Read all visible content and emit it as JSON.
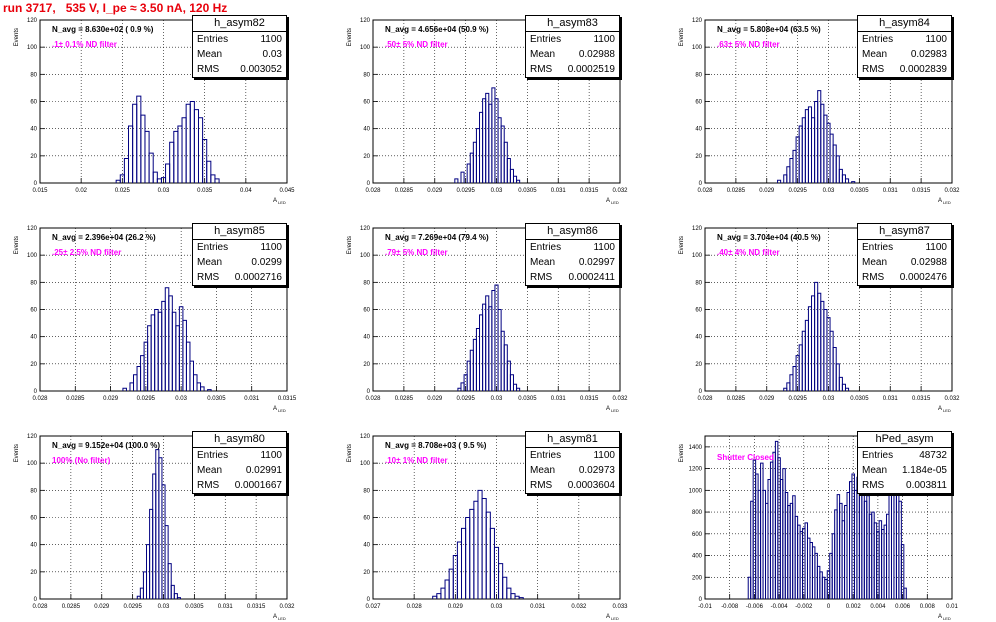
{
  "title": "run 3717,   535 V, I_pe ≈ 3.50 nA, 120 Hz",
  "colors": {
    "title": "#e8000b",
    "hist_line": "#000080",
    "filter_label": "#ff00ff"
  },
  "chart_data": [
    {
      "type": "bar",
      "name": "h_asym82",
      "stats": {
        "entries": "1100",
        "mean": "0.03",
        "rms": "0.003052"
      },
      "labels": {
        "n_avg": "N_avg = 8.630e+02 ( 0.9 %)",
        "filter": ".1± 0.1% ND filter",
        "ylabel": "Events",
        "xlabel": "A",
        "xlabel_sub": "LED"
      },
      "xlim": [
        0.015,
        0.045
      ],
      "ylim": [
        0,
        120
      ],
      "xticks": [
        "0.015",
        "0.02",
        "0.025",
        "0.03",
        "0.035",
        "0.04",
        "0.045"
      ],
      "yticks": [
        "0",
        "20",
        "40",
        "60",
        "80",
        "100",
        "120"
      ],
      "grid": true,
      "bins": [
        [
          0.0245,
          2
        ],
        [
          0.025,
          6
        ],
        [
          0.0255,
          18
        ],
        [
          0.026,
          42
        ],
        [
          0.0265,
          58
        ],
        [
          0.027,
          64
        ],
        [
          0.0275,
          50
        ],
        [
          0.028,
          38
        ],
        [
          0.0285,
          22
        ],
        [
          0.029,
          8
        ],
        [
          0.0295,
          3
        ],
        [
          0.03,
          4
        ],
        [
          0.0305,
          14
        ],
        [
          0.031,
          30
        ],
        [
          0.0315,
          38
        ],
        [
          0.032,
          42
        ],
        [
          0.0325,
          48
        ],
        [
          0.033,
          58
        ],
        [
          0.0335,
          60
        ],
        [
          0.034,
          54
        ],
        [
          0.0345,
          48
        ],
        [
          0.035,
          32
        ],
        [
          0.0355,
          16
        ],
        [
          0.036,
          6
        ],
        [
          0.0365,
          3
        ]
      ]
    },
    {
      "type": "bar",
      "name": "h_asym83",
      "stats": {
        "entries": "1100",
        "mean": "0.02988",
        "rms": "0.0002519"
      },
      "labels": {
        "n_avg": "N_avg = 4.656e+04 (50.9 %)",
        "filter": ".50± 5% ND filter",
        "ylabel": "Events",
        "xlabel": "A",
        "xlabel_sub": "LED"
      },
      "xlim": [
        0.028,
        0.032
      ],
      "ylim": [
        0,
        120
      ],
      "xticks": [
        "0.028",
        "0.0285",
        "0.029",
        "0.0295",
        "0.03",
        "0.0305",
        "0.031",
        "0.0315",
        "0.032"
      ],
      "yticks": [
        "0",
        "20",
        "40",
        "60",
        "80",
        "100",
        "120"
      ],
      "grid": true,
      "bins": [
        [
          0.02935,
          3
        ],
        [
          0.02945,
          8
        ],
        [
          0.02955,
          14
        ],
        [
          0.0296,
          22
        ],
        [
          0.02965,
          30
        ],
        [
          0.0297,
          40
        ],
        [
          0.02975,
          52
        ],
        [
          0.0298,
          62
        ],
        [
          0.02985,
          66
        ],
        [
          0.0299,
          58
        ],
        [
          0.02995,
          70
        ],
        [
          0.03,
          62
        ],
        [
          0.03005,
          48
        ],
        [
          0.0301,
          42
        ],
        [
          0.03015,
          30
        ],
        [
          0.0302,
          18
        ],
        [
          0.03025,
          10
        ],
        [
          0.0303,
          5
        ],
        [
          0.03035,
          2
        ]
      ]
    },
    {
      "type": "bar",
      "name": "h_asym84",
      "stats": {
        "entries": "1100",
        "mean": "0.02983",
        "rms": "0.0002839"
      },
      "labels": {
        "n_avg": "N_avg = 5.808e+04 (63.5 %)",
        "filter": ".63± 5% ND filter",
        "ylabel": "Events",
        "xlabel": "A",
        "xlabel_sub": "LED"
      },
      "xlim": [
        0.028,
        0.032
      ],
      "ylim": [
        0,
        120
      ],
      "xticks": [
        "0.028",
        "0.0285",
        "0.029",
        "0.0295",
        "0.03",
        "0.0305",
        "0.031",
        "0.0315",
        "0.032"
      ],
      "yticks": [
        "0",
        "20",
        "40",
        "60",
        "80",
        "100",
        "120"
      ],
      "grid": true,
      "bins": [
        [
          0.0292,
          2
        ],
        [
          0.0293,
          6
        ],
        [
          0.02935,
          12
        ],
        [
          0.0294,
          18
        ],
        [
          0.02945,
          24
        ],
        [
          0.0295,
          34
        ],
        [
          0.02955,
          42
        ],
        [
          0.0296,
          48
        ],
        [
          0.02965,
          54
        ],
        [
          0.0297,
          56
        ],
        [
          0.02975,
          48
        ],
        [
          0.0298,
          60
        ],
        [
          0.02985,
          68
        ],
        [
          0.0299,
          58
        ],
        [
          0.02995,
          50
        ],
        [
          0.03,
          44
        ],
        [
          0.03005,
          36
        ],
        [
          0.0301,
          28
        ],
        [
          0.03015,
          20
        ],
        [
          0.0302,
          10
        ],
        [
          0.03025,
          6
        ],
        [
          0.0303,
          3
        ],
        [
          0.0304,
          1
        ]
      ]
    },
    {
      "type": "bar",
      "name": "h_asym85",
      "stats": {
        "entries": "1100",
        "mean": "0.0299",
        "rms": "0.0002716"
      },
      "labels": {
        "n_avg": "N_avg = 2.396e+04 (26.2 %)",
        "filter": ".25± 2.5% ND filter",
        "ylabel": "Events",
        "xlabel": "A",
        "xlabel_sub": "LED"
      },
      "xlim": [
        0.028,
        0.0315
      ],
      "ylim": [
        0,
        120
      ],
      "xticks": [
        "0.028",
        "0.0285",
        "0.029",
        "0.0295",
        "0.03",
        "0.0305",
        "0.031",
        "0.0315"
      ],
      "yticks": [
        "0",
        "20",
        "40",
        "60",
        "80",
        "100",
        "120"
      ],
      "grid": true,
      "bins": [
        [
          0.0292,
          2
        ],
        [
          0.0293,
          6
        ],
        [
          0.02935,
          12
        ],
        [
          0.0294,
          18
        ],
        [
          0.02945,
          26
        ],
        [
          0.0295,
          36
        ],
        [
          0.02955,
          48
        ],
        [
          0.0296,
          56
        ],
        [
          0.02965,
          60
        ],
        [
          0.0297,
          58
        ],
        [
          0.02975,
          66
        ],
        [
          0.0298,
          76
        ],
        [
          0.02985,
          70
        ],
        [
          0.0299,
          58
        ],
        [
          0.02995,
          48
        ],
        [
          0.03,
          62
        ],
        [
          0.03005,
          52
        ],
        [
          0.0301,
          36
        ],
        [
          0.03015,
          22
        ],
        [
          0.0302,
          12
        ],
        [
          0.03025,
          6
        ],
        [
          0.0303,
          3
        ],
        [
          0.0304,
          1
        ]
      ]
    },
    {
      "type": "bar",
      "name": "h_asym86",
      "stats": {
        "entries": "1100",
        "mean": "0.02997",
        "rms": "0.0002411"
      },
      "labels": {
        "n_avg": "N_avg = 7.269e+04 (79.4 %)",
        "filter": ".79± 5% ND filter",
        "ylabel": "Events",
        "xlabel": "A",
        "xlabel_sub": "LED"
      },
      "xlim": [
        0.028,
        0.032
      ],
      "ylim": [
        0,
        120
      ],
      "xticks": [
        "0.028",
        "0.0285",
        "0.029",
        "0.0295",
        "0.03",
        "0.0305",
        "0.031",
        "0.0315",
        "0.032"
      ],
      "yticks": [
        "0",
        "20",
        "40",
        "60",
        "80",
        "100",
        "120"
      ],
      "grid": true,
      "bins": [
        [
          0.0294,
          2
        ],
        [
          0.02945,
          6
        ],
        [
          0.0295,
          12
        ],
        [
          0.02955,
          22
        ],
        [
          0.0296,
          30
        ],
        [
          0.02965,
          38
        ],
        [
          0.0297,
          46
        ],
        [
          0.02975,
          56
        ],
        [
          0.0298,
          64
        ],
        [
          0.02985,
          70
        ],
        [
          0.0299,
          62
        ],
        [
          0.02995,
          74
        ],
        [
          0.03,
          78
        ],
        [
          0.03005,
          60
        ],
        [
          0.0301,
          44
        ],
        [
          0.03015,
          34
        ],
        [
          0.0302,
          22
        ],
        [
          0.03025,
          12
        ],
        [
          0.0303,
          5
        ],
        [
          0.03035,
          2
        ]
      ]
    },
    {
      "type": "bar",
      "name": "h_asym87",
      "stats": {
        "entries": "1100",
        "mean": "0.02988",
        "rms": "0.0002476"
      },
      "labels": {
        "n_avg": "N_avg = 3.704e+04 (40.5 %)",
        "filter": ".40± 4% ND filter",
        "ylabel": "Events",
        "xlabel": "A",
        "xlabel_sub": "LED"
      },
      "xlim": [
        0.028,
        0.032
      ],
      "ylim": [
        0,
        120
      ],
      "xticks": [
        "0.028",
        "0.0285",
        "0.029",
        "0.0295",
        "0.03",
        "0.0305",
        "0.031",
        "0.0315",
        "0.032"
      ],
      "yticks": [
        "0",
        "20",
        "40",
        "60",
        "80",
        "100",
        "120"
      ],
      "grid": true,
      "bins": [
        [
          0.0293,
          2
        ],
        [
          0.02935,
          6
        ],
        [
          0.0294,
          12
        ],
        [
          0.02945,
          18
        ],
        [
          0.0295,
          26
        ],
        [
          0.02955,
          34
        ],
        [
          0.0296,
          44
        ],
        [
          0.02965,
          52
        ],
        [
          0.0297,
          62
        ],
        [
          0.02975,
          70
        ],
        [
          0.0298,
          80
        ],
        [
          0.02985,
          72
        ],
        [
          0.0299,
          66
        ],
        [
          0.02995,
          60
        ],
        [
          0.03,
          54
        ],
        [
          0.03005,
          44
        ],
        [
          0.0301,
          32
        ],
        [
          0.03015,
          20
        ],
        [
          0.0302,
          10
        ],
        [
          0.03025,
          5
        ],
        [
          0.0303,
          2
        ]
      ]
    },
    {
      "type": "bar",
      "name": "h_asym80",
      "stats": {
        "entries": "1100",
        "mean": "0.02991",
        "rms": "0.0001667"
      },
      "labels": {
        "n_avg": "N_avg = 9.152e+04 (100.0 %)",
        "filter": "100% (No filter)",
        "ylabel": "Events",
        "xlabel": "A",
        "xlabel_sub": "LED"
      },
      "xlim": [
        0.028,
        0.032
      ],
      "ylim": [
        0,
        120
      ],
      "xticks": [
        "0.028",
        "0.0285",
        "0.029",
        "0.0295",
        "0.03",
        "0.0305",
        "0.031",
        "0.0315",
        "0.032"
      ],
      "yticks": [
        "0",
        "20",
        "40",
        "60",
        "80",
        "100",
        "120"
      ],
      "grid": true,
      "bins": [
        [
          0.0296,
          2
        ],
        [
          0.02965,
          8
        ],
        [
          0.0297,
          20
        ],
        [
          0.02975,
          40
        ],
        [
          0.0298,
          66
        ],
        [
          0.02985,
          92
        ],
        [
          0.0299,
          110
        ],
        [
          0.02995,
          104
        ],
        [
          0.03,
          84
        ],
        [
          0.03005,
          54
        ],
        [
          0.0301,
          26
        ],
        [
          0.03015,
          10
        ],
        [
          0.0302,
          4
        ],
        [
          0.03025,
          1
        ]
      ]
    },
    {
      "type": "bar",
      "name": "h_asym81",
      "stats": {
        "entries": "1100",
        "mean": "0.02973",
        "rms": "0.0003604"
      },
      "labels": {
        "n_avg": "N_avg = 8.708e+03 ( 9.5 %)",
        "filter": ".10± 1% ND filter",
        "ylabel": "Events",
        "xlabel": "A",
        "xlabel_sub": "LED"
      },
      "xlim": [
        0.027,
        0.033
      ],
      "ylim": [
        0,
        120
      ],
      "xticks": [
        "0.027",
        "0.028",
        "0.029",
        "0.03",
        "0.031",
        "0.032",
        "0.033"
      ],
      "yticks": [
        "0",
        "20",
        "40",
        "60",
        "80",
        "100",
        "120"
      ],
      "grid": true,
      "bins": [
        [
          0.0285,
          2
        ],
        [
          0.0286,
          4
        ],
        [
          0.0287,
          8
        ],
        [
          0.0288,
          14
        ],
        [
          0.0289,
          22
        ],
        [
          0.029,
          32
        ],
        [
          0.0291,
          42
        ],
        [
          0.0292,
          52
        ],
        [
          0.0293,
          60
        ],
        [
          0.0294,
          66
        ],
        [
          0.0295,
          72
        ],
        [
          0.0296,
          80
        ],
        [
          0.0297,
          74
        ],
        [
          0.0298,
          64
        ],
        [
          0.0299,
          52
        ],
        [
          0.03,
          38
        ],
        [
          0.0301,
          26
        ],
        [
          0.0302,
          16
        ],
        [
          0.0303,
          8
        ],
        [
          0.0304,
          4
        ],
        [
          0.0305,
          2
        ],
        [
          0.0306,
          1
        ]
      ]
    },
    {
      "type": "bar",
      "name": "hPed_asym",
      "stats": {
        "entries": "48732",
        "mean": "1.184e-05",
        "rms": "0.003811"
      },
      "labels": {
        "n_avg": "",
        "filter": "Shutter Closed",
        "ylabel": "Events",
        "xlabel": "A",
        "xlabel_sub": "LED"
      },
      "xlim": [
        -0.01,
        0.01
      ],
      "ylim": [
        0,
        1500
      ],
      "xticks": [
        "-0.01",
        "-0.008",
        "-0.006",
        "-0.004",
        "-0.002",
        "0",
        "0.002",
        "0.004",
        "0.006",
        "0.008",
        "0.01"
      ],
      "yticks": [
        "0",
        "200",
        "400",
        "600",
        "800",
        "1000",
        "1200",
        "1400"
      ],
      "grid": true,
      "bins": [
        [
          -0.0064,
          200
        ],
        [
          -0.0062,
          900
        ],
        [
          -0.006,
          1280
        ],
        [
          -0.0058,
          1150
        ],
        [
          -0.0056,
          1000
        ],
        [
          -0.0054,
          1250
        ],
        [
          -0.0052,
          1000
        ],
        [
          -0.005,
          880
        ],
        [
          -0.0048,
          1100
        ],
        [
          -0.0046,
          1260
        ],
        [
          -0.0044,
          1350
        ],
        [
          -0.0042,
          1450
        ],
        [
          -0.004,
          1300
        ],
        [
          -0.0038,
          1100
        ],
        [
          -0.0036,
          1200
        ],
        [
          -0.0034,
          980
        ],
        [
          -0.0032,
          860
        ],
        [
          -0.003,
          880
        ],
        [
          -0.0028,
          950
        ],
        [
          -0.0026,
          760
        ],
        [
          -0.0024,
          680
        ],
        [
          -0.0022,
          620
        ],
        [
          -0.002,
          650
        ],
        [
          -0.0018,
          700
        ],
        [
          -0.0016,
          560
        ],
        [
          -0.0014,
          520
        ],
        [
          -0.0012,
          480
        ],
        [
          -0.001,
          420
        ],
        [
          -0.0008,
          300
        ],
        [
          -0.0006,
          250
        ],
        [
          -0.0004,
          200
        ],
        [
          -0.0002,
          180
        ],
        [
          0.0,
          260
        ],
        [
          0.0002,
          420
        ],
        [
          0.0004,
          600
        ],
        [
          0.0006,
          820
        ],
        [
          0.0008,
          960
        ],
        [
          0.001,
          880
        ],
        [
          0.0012,
          720
        ],
        [
          0.0014,
          860
        ],
        [
          0.0016,
          980
        ],
        [
          0.0018,
          1080
        ],
        [
          0.002,
          1150
        ],
        [
          0.0022,
          1000
        ],
        [
          0.0024,
          1120
        ],
        [
          0.0026,
          1200
        ],
        [
          0.0028,
          1050
        ],
        [
          0.003,
          900
        ],
        [
          0.0032,
          950
        ],
        [
          0.0034,
          780
        ],
        [
          0.0036,
          800
        ],
        [
          0.0038,
          700
        ],
        [
          0.004,
          620
        ],
        [
          0.0042,
          720
        ],
        [
          0.0044,
          640
        ],
        [
          0.0046,
          680
        ],
        [
          0.0048,
          780
        ],
        [
          0.005,
          1000
        ],
        [
          0.0052,
          1250
        ],
        [
          0.0054,
          1150
        ],
        [
          0.0056,
          1050
        ],
        [
          0.0058,
          900
        ],
        [
          0.006,
          500
        ],
        [
          0.0062,
          100
        ]
      ]
    }
  ]
}
